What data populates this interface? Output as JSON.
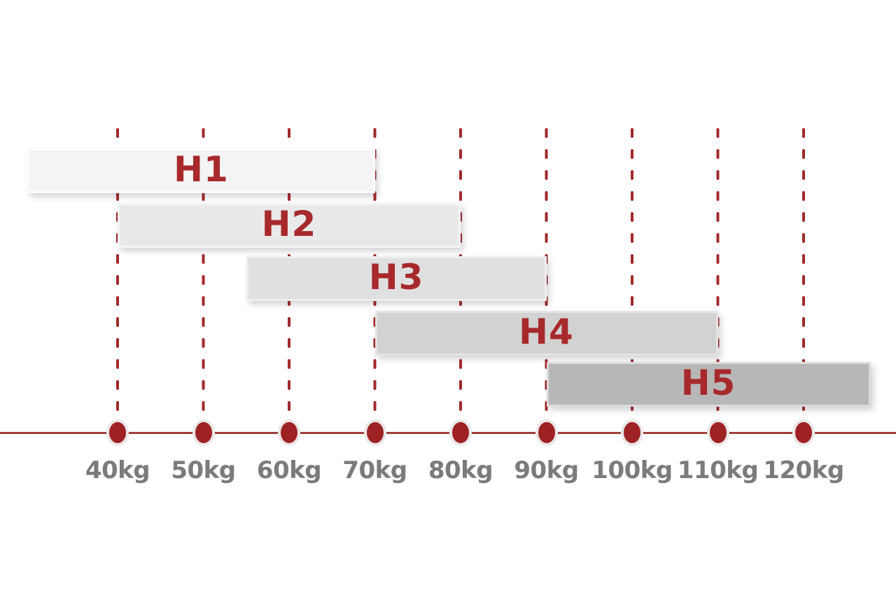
{
  "page": {
    "background": "#ffffff"
  },
  "chart_data": {
    "type": "bar",
    "orientation": "horizontal-range",
    "title": "",
    "xlabel": "",
    "unit": "kg",
    "x_axis": {
      "tick_values": [
        40,
        50,
        60,
        70,
        80,
        90,
        100,
        110,
        120
      ],
      "tick_labels": [
        "40kg",
        "50kg",
        "60kg",
        "70kg",
        "80kg",
        "90kg",
        "100kg",
        "110kg",
        "120kg"
      ],
      "gridlines": "dashed-vertical-red",
      "axis_line_full_width": true
    },
    "series": [
      {
        "name": "H1",
        "start_kg": 29.5,
        "end_kg": 70,
        "start_open": true,
        "end_open": false,
        "fill": "#f4f4f4",
        "border": "#fcfcfc"
      },
      {
        "name": "H2",
        "start_kg": 40,
        "end_kg": 80,
        "start_open": false,
        "end_open": false,
        "fill": "#e9e9e9",
        "border": "#f5f5f5"
      },
      {
        "name": "H3",
        "start_kg": 55,
        "end_kg": 90,
        "start_open": false,
        "end_open": false,
        "fill": "#e0e0e0",
        "border": "#eeeeee"
      },
      {
        "name": "H4",
        "start_kg": 70,
        "end_kg": 110,
        "start_open": false,
        "end_open": false,
        "fill": "#d2d2d2",
        "border": "#e4e4e4"
      },
      {
        "name": "H5",
        "start_kg": 90,
        "end_kg": 127.8,
        "start_open": false,
        "end_open": true,
        "fill": "#b7b7b7",
        "border": "#dbdbdb"
      }
    ],
    "colors": {
      "gridline_red": "#a5282a",
      "dot_red": "#9e2124",
      "dot_ring": "#ebe7e7",
      "axis_line_red": "#9d423d",
      "bar_label_red": "#a8292c",
      "tick_label_gray": "#7b7b7b"
    }
  }
}
